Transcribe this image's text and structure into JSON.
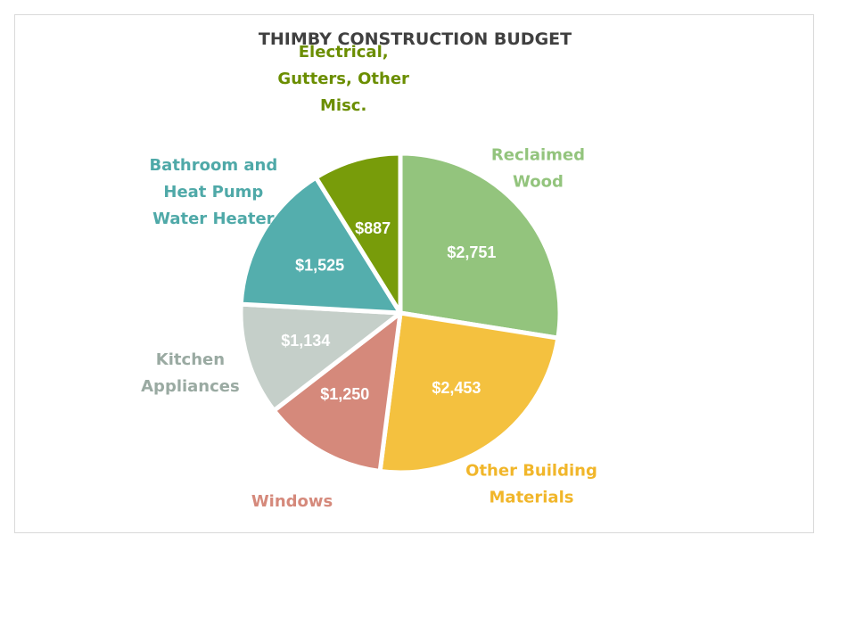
{
  "chart_data": {
    "type": "pie",
    "title": "THIMBY CONSTRUCTION BUDGET",
    "slices": [
      {
        "category": "Reclaimed Wood",
        "label_lines": [
          "Reclaimed",
          "Wood"
        ],
        "value": 2751,
        "value_label": "$2,751",
        "color": "#93c47d",
        "label_color": "#93c47d"
      },
      {
        "category": "Other Building Materials",
        "label_lines": [
          "Other Building",
          "Materials"
        ],
        "value": 2453,
        "value_label": "$2,453",
        "color": "#f4c13f",
        "label_color": "#f1b62a"
      },
      {
        "category": "Windows",
        "label_lines": [
          "Windows"
        ],
        "value": 1250,
        "value_label": "$1,250",
        "color": "#d5897b",
        "label_color": "#d5897b"
      },
      {
        "category": "Kitchen Appliances",
        "label_lines": [
          "Kitchen",
          "Appliances"
        ],
        "value": 1134,
        "value_label": "$1,134",
        "color": "#c5cfc9",
        "label_color": "#9aaaa2"
      },
      {
        "category": "Bathroom and Heat Pump Water Heater",
        "label_lines": [
          "Bathroom and",
          "Heat Pump",
          "Water Heater"
        ],
        "value": 1525,
        "value_label": "$1,525",
        "color": "#54aead",
        "label_color": "#4fa9a8"
      },
      {
        "category": "Electrical, Gutters, Other Misc.",
        "label_lines": [
          "Electrical,",
          "Gutters, Other",
          "Misc."
        ],
        "value": 887,
        "value_label": "$887",
        "color": "#789c0a",
        "label_color": "#6b8e00"
      }
    ]
  }
}
